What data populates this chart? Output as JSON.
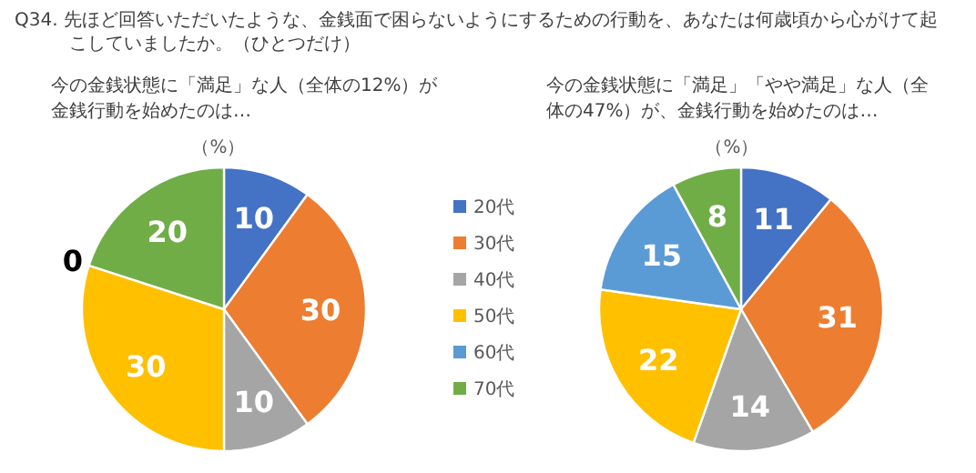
{
  "chart_data": [
    {
      "type": "pie",
      "title": "今の金銭状態に「満足」な人（全体の12%）が金銭行動を始めたのは…",
      "annotations": [
        "Q34. 先ほど回答いただいたような、金銭面で困らないようにするための行動を、あなたは何歳頃から心がけて起こしていましたか。（ひとつだけ）",
        "（%）"
      ],
      "categories": [
        "20代",
        "30代",
        "40代",
        "50代",
        "60代",
        "70代"
      ],
      "values": [
        10,
        30,
        10,
        30,
        0,
        20
      ],
      "value_labels": [
        "10",
        "30",
        "10",
        "30",
        "0",
        "20"
      ],
      "colors": [
        "#4472c4",
        "#ed7d31",
        "#a5a5a5",
        "#ffc000",
        "#5b9bd5",
        "#70ad47"
      ],
      "legend": "right"
    },
    {
      "type": "pie",
      "title": "今の金銭状態に「満足」「やや満足」な人（全体の47%）が、金銭行動を始めたのは…",
      "annotations": [
        "（%）"
      ],
      "categories": [
        null,
        null,
        null,
        null,
        null,
        null
      ],
      "values": [
        11,
        31,
        14,
        22,
        15,
        8
      ],
      "colors": [
        "#4472c4",
        "#ed7d31",
        "#a5a5a5",
        "#ffc000",
        "#5b9bd5",
        "#70ad47"
      ],
      "data_labels": true
    }
  ]
}
